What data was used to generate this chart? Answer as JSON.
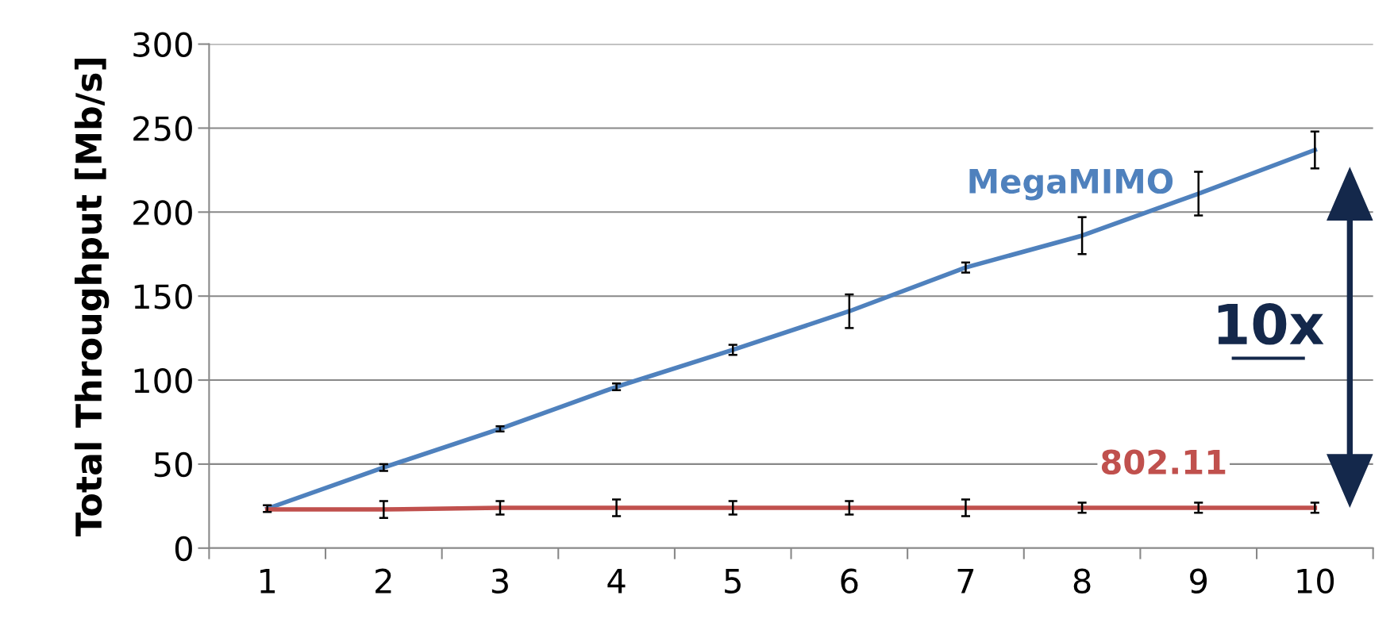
{
  "chart_data": {
    "type": "line",
    "ylabel": "Total Throughput [Mb/s]",
    "categories": [
      "1",
      "2",
      "3",
      "4",
      "5",
      "6",
      "7",
      "8",
      "9",
      "10"
    ],
    "series": [
      {
        "name": "MegaMIMO",
        "color": "#4f81bd",
        "values": [
          23.5,
          48,
          71,
          96,
          118,
          141,
          167,
          186,
          211,
          237
        ],
        "errors": [
          2,
          2,
          1.5,
          2,
          3,
          10,
          3,
          11,
          13,
          11
        ]
      },
      {
        "name": "802.11",
        "color": "#c0504d",
        "values": [
          23,
          23,
          24,
          24,
          24,
          24,
          24,
          24,
          24,
          24
        ],
        "errors": [
          null,
          5,
          4,
          5,
          4,
          4,
          5,
          3,
          3,
          3
        ]
      }
    ],
    "annotations": [
      "10x"
    ],
    "ylim": [
      0,
      300
    ],
    "yticks": [
      0,
      50,
      100,
      150,
      200,
      250,
      300
    ],
    "grid": "y",
    "legend": false,
    "marker": "none",
    "line_style": "solid"
  }
}
